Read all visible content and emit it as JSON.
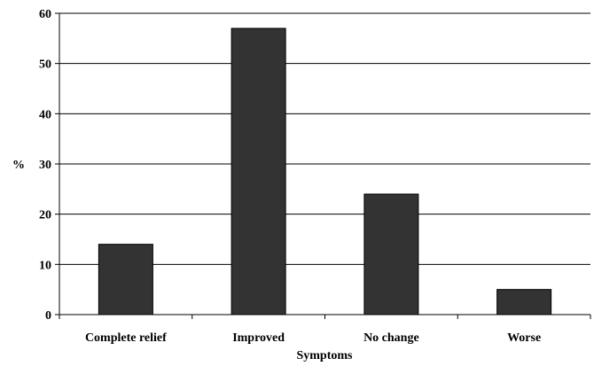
{
  "chart_data": {
    "type": "bar",
    "categories": [
      "Complete relief",
      "Improved",
      "No change",
      "Worse"
    ],
    "values": [
      14,
      57,
      24,
      5
    ],
    "xlabel": "Symptoms",
    "ylabel": "%",
    "ylim": [
      0,
      60
    ],
    "yticks": [
      0,
      10,
      20,
      30,
      40,
      50,
      60
    ],
    "grid": true,
    "bar_color": "#333333"
  }
}
